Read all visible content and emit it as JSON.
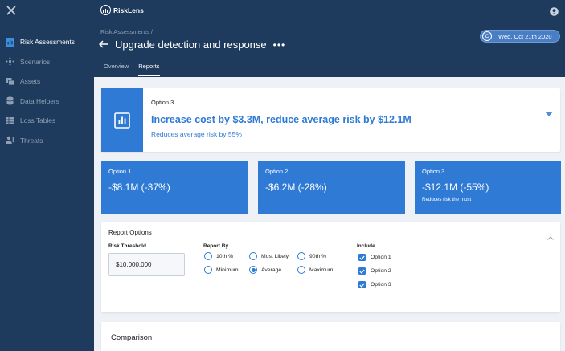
{
  "app": {
    "brand": "RiskLens"
  },
  "sidebar": {
    "items": [
      {
        "label": "Risk Assessments",
        "icon": "report-icon",
        "active": true
      },
      {
        "label": "Scenarios",
        "icon": "scenarios-icon"
      },
      {
        "label": "Assets",
        "icon": "assets-icon"
      },
      {
        "label": "Data Helpers",
        "icon": "database-icon"
      },
      {
        "label": "Loss Tables",
        "icon": "table-icon"
      },
      {
        "label": "Threats",
        "icon": "threats-icon"
      }
    ]
  },
  "header": {
    "breadcrumb": "Risk Assessments /",
    "title": "Upgrade detection and response",
    "more": "•••",
    "date_badge": "C",
    "date": "Wed, Oct 21th 2020",
    "tabs": [
      {
        "label": "Overview",
        "active": false
      },
      {
        "label": "Reports",
        "active": true
      }
    ]
  },
  "selected_option": {
    "label": "Option 3",
    "headline": "Increase cost by $3.3M, reduce average risk by $12.1M",
    "subtext": "Reduces average risk by 55%"
  },
  "options": [
    {
      "title": "Option 1",
      "value": "-$8.1M (-37%)",
      "note": ""
    },
    {
      "title": "Option 2",
      "value": "-$6.2M (-28%)",
      "note": ""
    },
    {
      "title": "Option 3",
      "value": "-$12.1M (-55%)",
      "note": "Reduces risk the most"
    }
  ],
  "report_options": {
    "title": "Report Options",
    "threshold_label": "Risk Threshold",
    "threshold_value": "$10,000,000",
    "report_by_label": "Report By",
    "report_by": [
      {
        "label": "10th %",
        "selected": false
      },
      {
        "label": "Most Likely",
        "selected": false
      },
      {
        "label": "90th %",
        "selected": false
      },
      {
        "label": "Minimum",
        "selected": false
      },
      {
        "label": "Average",
        "selected": true
      },
      {
        "label": "Maximum",
        "selected": false
      }
    ],
    "include_label": "Include",
    "include": [
      {
        "label": "Option 1",
        "checked": true
      },
      {
        "label": "Option 2",
        "checked": true
      },
      {
        "label": "Option 3",
        "checked": true
      }
    ]
  },
  "comparison": {
    "title": "Comparison"
  },
  "colors": {
    "navy": "#1e3a5c",
    "accent": "#2f7ad4",
    "background": "#eef1f5"
  }
}
